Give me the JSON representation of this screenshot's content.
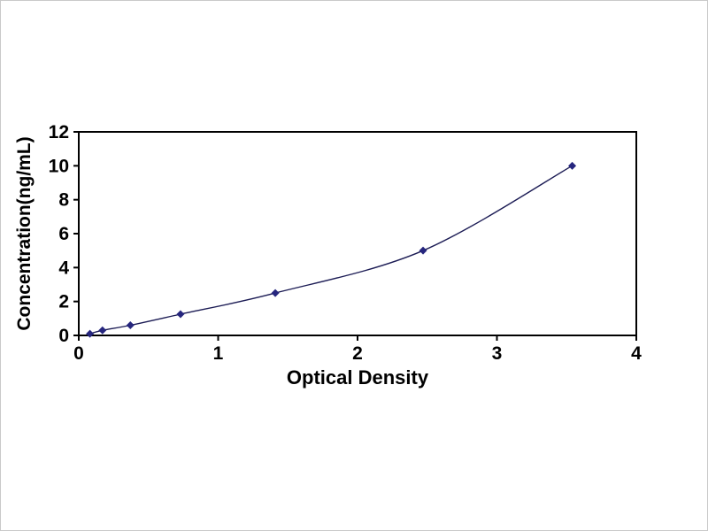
{
  "chart": {
    "xlabel": "Optical Density",
    "ylabel": "Concentration(ng/mL)"
  },
  "chart_data": {
    "type": "line",
    "title": "",
    "xlabel": "Optical Density",
    "ylabel": "Concentration(ng/mL)",
    "x": [
      0.08,
      0.17,
      0.37,
      0.73,
      1.41,
      2.47,
      3.54
    ],
    "y": [
      0.1,
      0.3,
      0.6,
      1.25,
      2.5,
      5,
      10
    ],
    "xlim": [
      0,
      4
    ],
    "ylim": [
      0,
      12
    ],
    "xticks": [
      0,
      1,
      2,
      3,
      4
    ],
    "yticks": [
      0,
      2,
      4,
      6,
      8,
      10,
      12
    ],
    "grid": false,
    "legend": null,
    "marker": "diamond",
    "line_color": "#1c1c55",
    "marker_color": "#26267e",
    "axis_color": "#000000",
    "background_color": "#ffffff"
  }
}
